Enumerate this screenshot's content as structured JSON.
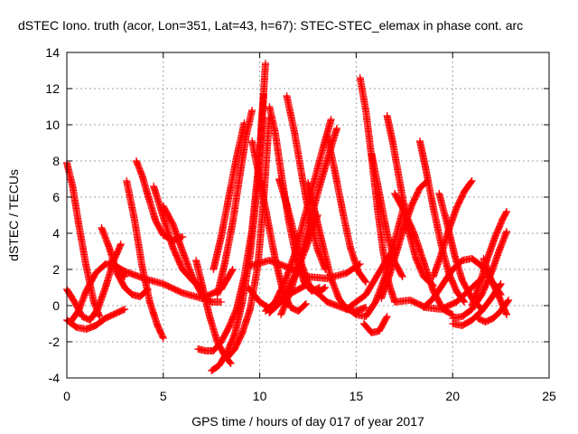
{
  "chart_data": {
    "type": "scatter",
    "title": "dSTEC Iono. truth (acor, Lon=351, Lat=43, h=67): STEC-STEC_elemax in phase cont. arc",
    "xlabel": "GPS time / hours of day 017 of year 2017",
    "ylabel": "dSTEC  / TECUs",
    "xlim": [
      0,
      25
    ],
    "ylim": [
      -4,
      14
    ],
    "x_ticks": [
      "0",
      "5",
      "10",
      "15",
      "20",
      "25"
    ],
    "y_ticks": [
      "-4",
      "-2",
      "0",
      "2",
      "4",
      "6",
      "8",
      "10",
      "12",
      "14"
    ],
    "grid": true,
    "marker": "+",
    "color": "#ff0000",
    "series": [
      {
        "x": [
          0.0,
          0.3,
          0.6,
          1.0,
          1.4,
          1.7
        ],
        "y": [
          7.9,
          6.6,
          4.6,
          2.2,
          0.2,
          -0.6
        ]
      },
      {
        "x": [
          0.0,
          0.5,
          1.0,
          1.5,
          2.0,
          2.6,
          3.0
        ],
        "y": [
          -0.8,
          -1.2,
          -1.3,
          -1.1,
          -0.7,
          -0.4,
          -0.2
        ]
      },
      {
        "x": [
          0.0,
          0.4,
          0.8,
          1.2,
          1.6,
          2.0,
          2.4,
          2.8
        ],
        "y": [
          0.9,
          0.2,
          -0.6,
          -0.8,
          -0.2,
          1.0,
          2.4,
          3.4
        ]
      },
      {
        "x": [
          0.2,
          0.6,
          1.0,
          1.5,
          2.0,
          2.5,
          3.0
        ],
        "y": [
          -0.9,
          -0.3,
          0.8,
          1.8,
          2.3,
          2.2,
          1.6
        ]
      },
      {
        "x": [
          1.8,
          2.2,
          2.6,
          3.0,
          3.4,
          3.8,
          4.2
        ],
        "y": [
          4.3,
          3.2,
          1.8,
          1.0,
          0.6,
          0.5,
          0.9
        ]
      },
      {
        "x": [
          3.1,
          3.5,
          3.9,
          4.3,
          4.7,
          5.0
        ],
        "y": [
          6.9,
          4.8,
          2.2,
          0.2,
          -1.1,
          -1.8
        ]
      },
      {
        "x": [
          3.6,
          3.9,
          4.2,
          4.6,
          5.0,
          5.5,
          6.0
        ],
        "y": [
          8.0,
          7.2,
          6.1,
          4.7,
          3.9,
          3.6,
          3.8
        ]
      },
      {
        "x": [
          4.5,
          5.0,
          5.5,
          6.0,
          6.5,
          7.0
        ],
        "y": [
          6.6,
          4.9,
          3.2,
          2.0,
          1.4,
          1.0
        ]
      },
      {
        "x": [
          5.0,
          5.5,
          6.0,
          6.5,
          7.0,
          7.5,
          8.0
        ],
        "y": [
          5.5,
          4.5,
          3.0,
          1.6,
          0.6,
          0.2,
          0.2
        ]
      },
      {
        "x": [
          2.2,
          3.0,
          4.0,
          5.0,
          6.0,
          7.0,
          8.0,
          8.6
        ],
        "y": [
          2.4,
          1.9,
          1.5,
          1.2,
          0.7,
          0.4,
          0.9,
          2.0
        ]
      },
      {
        "x": [
          6.7,
          7.0,
          7.4,
          7.8,
          8.2,
          8.5
        ],
        "y": [
          2.5,
          1.2,
          -0.6,
          -2.0,
          -2.8,
          -3.2
        ]
      },
      {
        "x": [
          6.8,
          7.2,
          7.6,
          8.0,
          8.4,
          8.8,
          9.2,
          9.6,
          10.0,
          10.3
        ],
        "y": [
          -2.4,
          -2.5,
          -2.5,
          -2.0,
          -1.2,
          -0.2,
          1.6,
          4.2,
          8.4,
          13.4
        ]
      },
      {
        "x": [
          7.5,
          7.9,
          8.3,
          8.7,
          9.1,
          9.5,
          9.9,
          10.2
        ],
        "y": [
          -3.6,
          -3.3,
          -2.6,
          -1.6,
          0.2,
          2.8,
          6.8,
          11.7
        ]
      },
      {
        "x": [
          8.3,
          8.7,
          9.1,
          9.5,
          9.9,
          10.2,
          10.5
        ],
        "y": [
          -2.9,
          -2.4,
          -1.5,
          -0.2,
          2.2,
          5.8,
          10.4
        ]
      },
      {
        "x": [
          7.8,
          8.2,
          8.6,
          9.0,
          9.3,
          9.6
        ],
        "y": [
          0.6,
          2.4,
          4.6,
          7.4,
          9.4,
          10.8
        ]
      },
      {
        "x": [
          7.6,
          8.0,
          8.4,
          8.8,
          9.2
        ],
        "y": [
          2.0,
          3.8,
          6.0,
          8.2,
          10.1
        ]
      },
      {
        "x": [
          9.6,
          10.0,
          10.4,
          10.8,
          11.2,
          11.6,
          12.0,
          12.4
        ],
        "y": [
          9.1,
          7.0,
          4.8,
          2.6,
          0.8,
          -0.1,
          -0.3,
          0.1
        ]
      },
      {
        "x": [
          10.5,
          10.8,
          11.1,
          11.5,
          11.9,
          12.3,
          12.7,
          13.1
        ],
        "y": [
          11.0,
          9.6,
          7.4,
          4.7,
          2.6,
          1.3,
          0.8,
          1.0
        ]
      },
      {
        "x": [
          11.0,
          11.4,
          11.8,
          12.2,
          12.6,
          13.0,
          13.4
        ],
        "y": [
          7.0,
          5.6,
          3.9,
          2.2,
          1.0,
          0.7,
          1.0
        ]
      },
      {
        "x": [
          9.4,
          10.0,
          10.6,
          11.2,
          11.8,
          12.4,
          13.0
        ],
        "y": [
          1.0,
          0.2,
          -0.2,
          0.4,
          1.6,
          3.2,
          5.0
        ]
      },
      {
        "x": [
          10.3,
          10.8,
          11.3,
          11.8,
          12.3,
          12.8,
          13.3,
          13.7
        ],
        "y": [
          -0.3,
          0.2,
          1.3,
          2.8,
          4.8,
          6.8,
          8.8,
          10.3
        ]
      },
      {
        "x": [
          11.1,
          11.6,
          12.1,
          12.6,
          13.1,
          13.6,
          14.0
        ],
        "y": [
          -0.5,
          0.8,
          2.6,
          4.6,
          6.6,
          8.4,
          9.8
        ]
      },
      {
        "x": [
          11.4,
          11.8,
          12.2,
          12.6,
          13.0,
          13.4
        ],
        "y": [
          11.6,
          9.6,
          7.1,
          4.8,
          3.1,
          2.0
        ]
      },
      {
        "x": [
          12.5,
          12.9,
          13.3,
          13.7,
          14.1,
          14.5,
          15.0,
          15.5
        ],
        "y": [
          6.8,
          5.0,
          3.2,
          1.5,
          0.4,
          -0.2,
          -0.3,
          -0.1
        ]
      },
      {
        "x": [
          13.5,
          13.9,
          14.3,
          14.7,
          15.1,
          15.5
        ],
        "y": [
          9.4,
          7.4,
          5.2,
          3.2,
          1.9,
          1.3
        ]
      },
      {
        "x": [
          10.5,
          11.5,
          12.5,
          13.5,
          14.5,
          15.5,
          16.5,
          17.0
        ],
        "y": [
          -0.4,
          0.6,
          1.2,
          0.2,
          -0.2,
          0.6,
          2.4,
          3.2
        ]
      },
      {
        "x": [
          9.5,
          10.5,
          11.5,
          12.5,
          13.5,
          14.5,
          15.2
        ],
        "y": [
          2.2,
          2.5,
          2.1,
          1.6,
          1.5,
          1.8,
          2.3
        ]
      },
      {
        "x": [
          15.2,
          15.5,
          15.8,
          16.1,
          16.4,
          16.7,
          17.0
        ],
        "y": [
          12.6,
          10.8,
          8.2,
          5.4,
          3.0,
          1.2,
          0.2
        ]
      },
      {
        "x": [
          15.4,
          15.8,
          16.2,
          16.6
        ],
        "y": [
          -1.0,
          -1.5,
          -1.4,
          -0.6
        ]
      },
      {
        "x": [
          15.8,
          16.2,
          16.6,
          17.0,
          17.4
        ],
        "y": [
          8.4,
          6.2,
          4.0,
          2.4,
          1.6
        ]
      },
      {
        "x": [
          16.6,
          16.9,
          17.3,
          17.7,
          18.1,
          18.5,
          19.0
        ],
        "y": [
          10.5,
          9.0,
          6.6,
          4.2,
          2.6,
          1.6,
          1.1
        ]
      },
      {
        "x": [
          14.5,
          15.0,
          15.5,
          16.0,
          16.5,
          17.0,
          17.5
        ],
        "y": [
          -0.1,
          -0.5,
          -0.6,
          0.2,
          1.6,
          3.6,
          5.6
        ]
      },
      {
        "x": [
          16.3,
          16.7,
          17.1,
          17.5,
          17.9,
          18.3,
          18.7
        ],
        "y": [
          0.4,
          1.6,
          3.0,
          4.4,
          5.6,
          6.5,
          6.9
        ]
      },
      {
        "x": [
          17.0,
          17.5,
          18.0,
          18.5,
          19.0,
          19.5,
          20.0
        ],
        "y": [
          6.2,
          5.2,
          4.0,
          2.4,
          0.8,
          -0.2,
          -0.5
        ]
      },
      {
        "x": [
          18.3,
          18.6,
          19.0,
          19.4,
          19.8,
          20.2,
          20.6
        ],
        "y": [
          9.1,
          7.6,
          5.4,
          3.4,
          1.8,
          0.8,
          0.2
        ]
      },
      {
        "x": [
          17.0,
          17.8,
          18.6,
          19.4,
          20.2,
          21.0,
          21.6
        ],
        "y": [
          0.2,
          0.3,
          -0.1,
          -0.2,
          0.2,
          1.0,
          1.6
        ]
      },
      {
        "x": [
          18.5,
          19.0,
          19.5,
          20.0,
          20.5,
          21.0,
          21.5,
          22.0,
          22.5
        ],
        "y": [
          -0.1,
          0.4,
          1.2,
          2.0,
          2.5,
          2.6,
          2.2,
          1.4,
          0.6
        ]
      },
      {
        "x": [
          19.0,
          19.4,
          19.8,
          20.2,
          20.6,
          21.0
        ],
        "y": [
          1.6,
          2.8,
          4.2,
          5.4,
          6.3,
          6.9
        ]
      },
      {
        "x": [
          19.3,
          19.7,
          20.1,
          20.5,
          21.0,
          21.5
        ],
        "y": [
          6.2,
          4.6,
          2.8,
          1.4,
          0.4,
          -0.2
        ]
      },
      {
        "x": [
          20.0,
          20.5,
          21.0,
          21.5,
          22.0,
          22.5
        ],
        "y": [
          -1.0,
          -1.1,
          -0.8,
          -0.3,
          0.4,
          1.2
        ]
      },
      {
        "x": [
          21.0,
          21.4,
          21.8,
          22.2,
          22.6,
          22.8
        ],
        "y": [
          0.0,
          1.2,
          2.6,
          3.8,
          4.8,
          5.2
        ]
      },
      {
        "x": [
          21.3,
          21.7,
          22.1,
          22.5,
          22.9
        ],
        "y": [
          -0.7,
          -0.9,
          -0.7,
          -0.3,
          0.3
        ]
      },
      {
        "x": [
          20.0,
          20.5,
          21.0,
          21.5,
          22.0,
          22.4,
          22.8
        ],
        "y": [
          -0.7,
          -0.6,
          -0.2,
          0.6,
          1.8,
          3.0,
          4.1
        ]
      },
      {
        "x": [
          21.6,
          22.0,
          22.4,
          22.8
        ],
        "y": [
          2.6,
          1.4,
          0.5,
          -0.5
        ]
      }
    ]
  }
}
